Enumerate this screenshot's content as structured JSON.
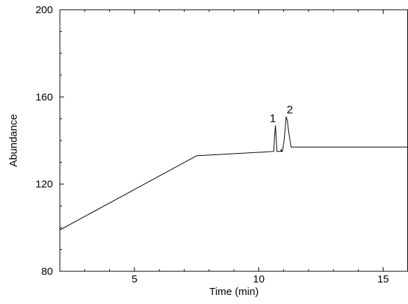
{
  "chart_data": {
    "type": "line",
    "xlabel": "Time (min)",
    "ylabel": "Abundance",
    "xlim": [
      2,
      16
    ],
    "ylim": [
      80,
      200
    ],
    "x_ticks": [
      5,
      10,
      15
    ],
    "y_ticks": [
      80,
      120,
      160,
      200
    ],
    "grid": false,
    "series": [
      {
        "x": [
          2.0,
          7.5,
          10.6,
          10.63,
          10.67,
          10.7,
          10.73,
          10.8,
          10.88,
          10.9,
          10.92,
          10.95,
          11.02,
          11.1,
          11.15,
          11.2,
          11.3,
          11.45,
          16.0
        ],
        "y": [
          99,
          133,
          135,
          141,
          147,
          141,
          135,
          135,
          135,
          136,
          135,
          135,
          140,
          151,
          149,
          144,
          137,
          137,
          137
        ]
      }
    ],
    "annotations": [
      {
        "text": "1",
        "x": 10.62,
        "y": 148.5
      },
      {
        "text": "2",
        "x": 11.3,
        "y": 152.5
      }
    ]
  }
}
